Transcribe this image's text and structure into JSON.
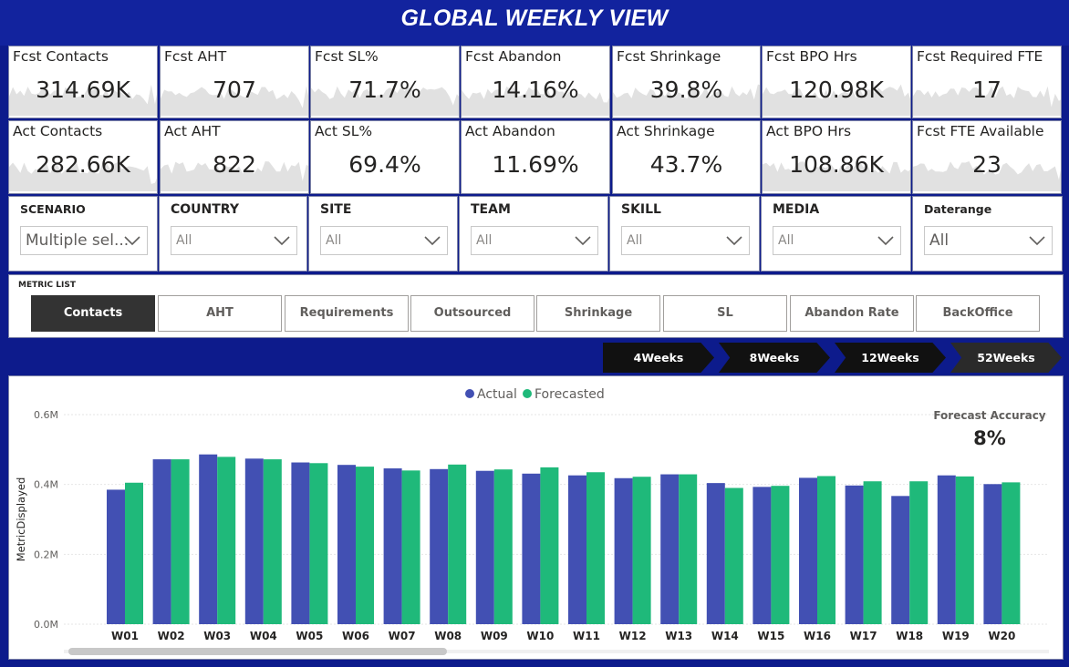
{
  "title": "GLOBAL WEEKLY VIEW",
  "forecast_cards": [
    {
      "label": "Fcst Contacts",
      "value": "314.69K"
    },
    {
      "label": "Fcst AHT",
      "value": "707"
    },
    {
      "label": "Fcst SL%",
      "value": "71.7%"
    },
    {
      "label": "Fcst Abandon",
      "value": "14.16%"
    },
    {
      "label": "Fcst Shrinkage",
      "value": "39.8%"
    },
    {
      "label": "Fcst BPO Hrs",
      "value": "120.98K"
    },
    {
      "label": "Fcst Required FTE",
      "value": "17"
    }
  ],
  "actual_cards": [
    {
      "label": "Act Contacts",
      "value": "282.66K"
    },
    {
      "label": "Act AHT",
      "value": "822"
    },
    {
      "label": "Act SL%",
      "value": "69.4%"
    },
    {
      "label": "Act Abandon",
      "value": "11.69%"
    },
    {
      "label": "Act Shrinkage",
      "value": "43.7%"
    },
    {
      "label": "Act BPO Hrs",
      "value": "108.86K"
    },
    {
      "label": "Fcst FTE Available",
      "value": "23"
    }
  ],
  "slicers": [
    {
      "title": "SCENARIO",
      "value": "Multiple sel..."
    },
    {
      "title": "COUNTRY",
      "value": "All"
    },
    {
      "title": "SITE",
      "value": "All"
    },
    {
      "title": "TEAM",
      "value": "All"
    },
    {
      "title": "SKILL",
      "value": "All"
    },
    {
      "title": "MEDIA",
      "value": "All"
    },
    {
      "title": "Daterange",
      "value": "All"
    }
  ],
  "metric_list": {
    "title": "METRIC LIST",
    "buttons": [
      "Contacts",
      "AHT",
      "Requirements",
      "Outsourced",
      "Shrinkage",
      "SL",
      "Abandon Rate",
      "BackOffice"
    ],
    "active": "Contacts"
  },
  "period_buttons": [
    "4Weeks",
    "8Weeks",
    "12Weeks",
    "52Weeks"
  ],
  "period_active": "52Weeks",
  "forecast_accuracy": {
    "label": "Forecast Accuracy",
    "value": "8%"
  },
  "colors": {
    "actual": "#4250b3",
    "forecasted": "#1fb97a",
    "header": "#12239e",
    "background": "#0d1b8c"
  },
  "chart_data": {
    "type": "bar",
    "ylabel": "MetricDisplayed",
    "ylim": [
      0,
      0.6
    ],
    "yticks": [
      "0.0M",
      "0.2M",
      "0.4M",
      "0.6M"
    ],
    "ytick_values": [
      0,
      0.2,
      0.4,
      0.6
    ],
    "legend_position": "top-center",
    "grid": true,
    "categories": [
      "W01",
      "W02",
      "W03",
      "W04",
      "W05",
      "W06",
      "W07",
      "W08",
      "W09",
      "W10",
      "W11",
      "W12",
      "W13",
      "W14",
      "W15",
      "W16",
      "W17",
      "W18",
      "W19",
      "W20"
    ],
    "series": [
      {
        "name": "Actual",
        "values": [
          0.385,
          0.472,
          0.486,
          0.474,
          0.463,
          0.456,
          0.446,
          0.444,
          0.439,
          0.431,
          0.426,
          0.418,
          0.429,
          0.404,
          0.393,
          0.419,
          0.397,
          0.367,
          0.426,
          0.401
        ]
      },
      {
        "name": "Forecasted",
        "values": [
          0.405,
          0.472,
          0.479,
          0.472,
          0.461,
          0.451,
          0.44,
          0.457,
          0.443,
          0.449,
          0.435,
          0.422,
          0.429,
          0.39,
          0.396,
          0.424,
          0.409,
          0.409,
          0.423,
          0.406
        ]
      }
    ]
  }
}
